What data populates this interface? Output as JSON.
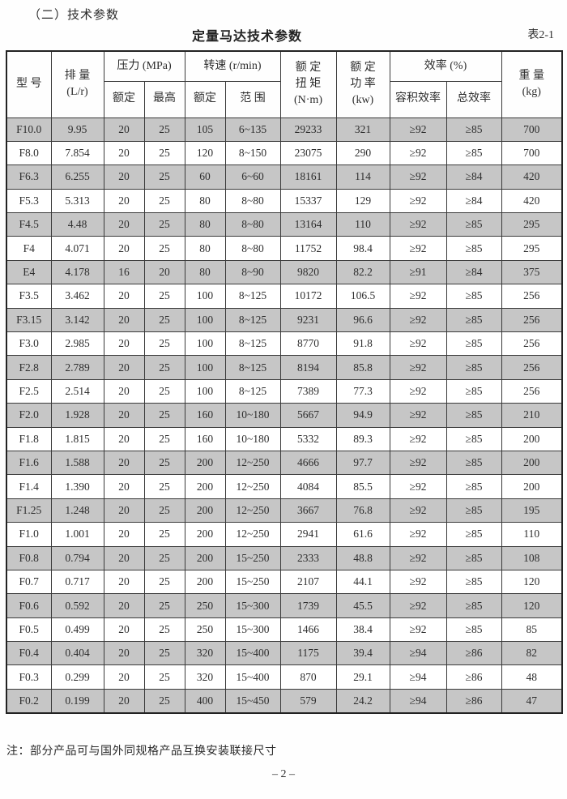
{
  "page": {
    "section_heading": "（二）技术参数",
    "table_title": "定量马达技术参数",
    "table_number": "表2-1",
    "footnote": "注：部分产品可与国外同规格产品互换安装联接尺寸",
    "page_number": "– 2 –"
  },
  "colors": {
    "row_shade": "#c6c6c6",
    "border": "#3a3a3a",
    "text": "#2e2e2e",
    "background": "#fefefe"
  },
  "table": {
    "header": {
      "model": "型 号",
      "displacement": "排 量\n(L/r)",
      "pressure_group": "压力 (MPa)",
      "pressure_rated": "额定",
      "pressure_max": "最高",
      "speed_group": "转速 (r/min)",
      "speed_rated": "额定",
      "speed_range": "范 围",
      "torque": "额 定\n扭 矩\n(N·m)",
      "power": "额 定\n功 率\n(kw)",
      "efficiency_group": "效率 (%)",
      "efficiency_volumetric": "容积效率",
      "efficiency_total": "总效率",
      "weight": "重 量\n(kg)"
    },
    "rows": [
      [
        "F10.0",
        "9.95",
        "20",
        "25",
        "105",
        "6~135",
        "29233",
        "321",
        "≥92",
        "≥85",
        "700"
      ],
      [
        "F8.0",
        "7.854",
        "20",
        "25",
        "120",
        "8~150",
        "23075",
        "290",
        "≥92",
        "≥85",
        "700"
      ],
      [
        "F6.3",
        "6.255",
        "20",
        "25",
        "60",
        "6~60",
        "18161",
        "114",
        "≥92",
        "≥84",
        "420"
      ],
      [
        "F5.3",
        "5.313",
        "20",
        "25",
        "80",
        "8~80",
        "15337",
        "129",
        "≥92",
        "≥84",
        "420"
      ],
      [
        "F4.5",
        "4.48",
        "20",
        "25",
        "80",
        "8~80",
        "13164",
        "110",
        "≥92",
        "≥85",
        "295"
      ],
      [
        "F4",
        "4.071",
        "20",
        "25",
        "80",
        "8~80",
        "11752",
        "98.4",
        "≥92",
        "≥85",
        "295"
      ],
      [
        "E4",
        "4.178",
        "16",
        "20",
        "80",
        "8~90",
        "9820",
        "82.2",
        "≥91",
        "≥84",
        "375"
      ],
      [
        "F3.5",
        "3.462",
        "20",
        "25",
        "100",
        "8~125",
        "10172",
        "106.5",
        "≥92",
        "≥85",
        "256"
      ],
      [
        "F3.15",
        "3.142",
        "20",
        "25",
        "100",
        "8~125",
        "9231",
        "96.6",
        "≥92",
        "≥85",
        "256"
      ],
      [
        "F3.0",
        "2.985",
        "20",
        "25",
        "100",
        "8~125",
        "8770",
        "91.8",
        "≥92",
        "≥85",
        "256"
      ],
      [
        "F2.8",
        "2.789",
        "20",
        "25",
        "100",
        "8~125",
        "8194",
        "85.8",
        "≥92",
        "≥85",
        "256"
      ],
      [
        "F2.5",
        "2.514",
        "20",
        "25",
        "100",
        "8~125",
        "7389",
        "77.3",
        "≥92",
        "≥85",
        "256"
      ],
      [
        "F2.0",
        "1.928",
        "20",
        "25",
        "160",
        "10~180",
        "5667",
        "94.9",
        "≥92",
        "≥85",
        "210"
      ],
      [
        "F1.8",
        "1.815",
        "20",
        "25",
        "160",
        "10~180",
        "5332",
        "89.3",
        "≥92",
        "≥85",
        "200"
      ],
      [
        "F1.6",
        "1.588",
        "20",
        "25",
        "200",
        "12~250",
        "4666",
        "97.7",
        "≥92",
        "≥85",
        "200"
      ],
      [
        "F1.4",
        "1.390",
        "20",
        "25",
        "200",
        "12~250",
        "4084",
        "85.5",
        "≥92",
        "≥85",
        "200"
      ],
      [
        "F1.25",
        "1.248",
        "20",
        "25",
        "200",
        "12~250",
        "3667",
        "76.8",
        "≥92",
        "≥85",
        "195"
      ],
      [
        "F1.0",
        "1.001",
        "20",
        "25",
        "200",
        "12~250",
        "2941",
        "61.6",
        "≥92",
        "≥85",
        "110"
      ],
      [
        "F0.8",
        "0.794",
        "20",
        "25",
        "200",
        "15~250",
        "2333",
        "48.8",
        "≥92",
        "≥85",
        "108"
      ],
      [
        "F0.7",
        "0.717",
        "20",
        "25",
        "200",
        "15~250",
        "2107",
        "44.1",
        "≥92",
        "≥85",
        "120"
      ],
      [
        "F0.6",
        "0.592",
        "20",
        "25",
        "250",
        "15~300",
        "1739",
        "45.5",
        "≥92",
        "≥85",
        "120"
      ],
      [
        "F0.5",
        "0.499",
        "20",
        "25",
        "250",
        "15~300",
        "1466",
        "38.4",
        "≥92",
        "≥85",
        "85"
      ],
      [
        "F0.4",
        "0.404",
        "20",
        "25",
        "320",
        "15~400",
        "1175",
        "39.4",
        "≥94",
        "≥86",
        "82"
      ],
      [
        "F0.3",
        "0.299",
        "20",
        "25",
        "320",
        "15~400",
        "870",
        "29.1",
        "≥94",
        "≥86",
        "48"
      ],
      [
        "F0.2",
        "0.199",
        "20",
        "25",
        "400",
        "15~450",
        "579",
        "24.2",
        "≥94",
        "≥86",
        "47"
      ]
    ]
  }
}
